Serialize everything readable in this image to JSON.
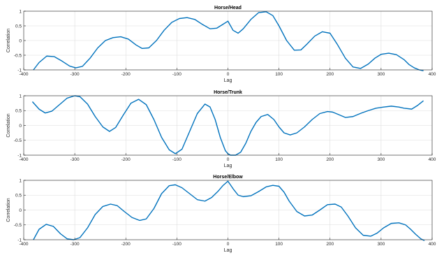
{
  "chart_data": [
    {
      "type": "line",
      "title": "Horse/Head",
      "xlabel": "Lag",
      "ylabel": "Correlation",
      "xlim": [
        -400,
        400
      ],
      "ylim": [
        -1,
        1
      ],
      "xticks": [
        -400,
        -300,
        -200,
        -100,
        0,
        100,
        200,
        300,
        400
      ],
      "yticks": [
        -1,
        -0.5,
        0,
        0.5,
        1
      ],
      "grid": true,
      "series": [
        {
          "color": "#0072bd",
          "x": [
            -381,
            -370,
            -355,
            -340,
            -325,
            -310,
            -298,
            -285,
            -270,
            -255,
            -240,
            -225,
            -210,
            -195,
            -180,
            -168,
            -155,
            -140,
            -125,
            -110,
            -95,
            -80,
            -65,
            -50,
            -35,
            -22,
            -10,
            0,
            10,
            20,
            30,
            45,
            60,
            75,
            88,
            100,
            115,
            130,
            143,
            155,
            170,
            185,
            200,
            215,
            230,
            245,
            260,
            275,
            288,
            300,
            315,
            330,
            345,
            355,
            365,
            375,
            383
          ],
          "y": [
            -1.0,
            -0.75,
            -0.53,
            -0.55,
            -0.7,
            -0.87,
            -0.93,
            -0.88,
            -0.6,
            -0.25,
            0.0,
            0.1,
            0.13,
            0.05,
            -0.15,
            -0.27,
            -0.25,
            0.0,
            0.35,
            0.62,
            0.75,
            0.78,
            0.72,
            0.55,
            0.4,
            0.42,
            0.55,
            0.66,
            0.35,
            0.25,
            0.4,
            0.72,
            0.95,
            0.98,
            0.85,
            0.5,
            0.0,
            -0.33,
            -0.32,
            -0.12,
            0.15,
            0.3,
            0.25,
            -0.15,
            -0.6,
            -0.9,
            -0.95,
            -0.8,
            -0.6,
            -0.47,
            -0.43,
            -0.48,
            -0.65,
            -0.82,
            -0.93,
            -1.0,
            -1.05
          ]
        }
      ]
    },
    {
      "type": "line",
      "title": "Horse/Trunk",
      "xlabel": "Lag",
      "ylabel": "Correlation",
      "xlim": [
        -400,
        400
      ],
      "ylim": [
        -1,
        1
      ],
      "xticks": [
        -400,
        -300,
        -200,
        -100,
        0,
        100,
        200,
        300,
        400
      ],
      "yticks": [
        -1,
        -0.5,
        0,
        0.5,
        1
      ],
      "grid": true,
      "series": [
        {
          "color": "#0072bd",
          "x": [
            -383,
            -370,
            -358,
            -345,
            -330,
            -315,
            -300,
            -290,
            -275,
            -260,
            -245,
            -232,
            -220,
            -205,
            -190,
            -175,
            -160,
            -145,
            -130,
            -115,
            -103,
            -90,
            -75,
            -60,
            -45,
            -35,
            -25,
            -15,
            -5,
            0,
            5,
            15,
            25,
            35,
            45,
            55,
            65,
            78,
            90,
            100,
            110,
            122,
            135,
            150,
            165,
            180,
            195,
            205,
            215,
            230,
            245,
            262,
            275,
            290,
            305,
            320,
            335,
            345,
            360,
            372,
            383
          ],
          "y": [
            0.8,
            0.55,
            0.42,
            0.48,
            0.7,
            0.92,
            1.0,
            0.97,
            0.72,
            0.3,
            -0.05,
            -0.2,
            -0.07,
            0.35,
            0.75,
            0.88,
            0.7,
            0.2,
            -0.4,
            -0.82,
            -0.95,
            -0.8,
            -0.2,
            0.4,
            0.72,
            0.62,
            0.2,
            -0.4,
            -0.85,
            -0.95,
            -1.0,
            -1.0,
            -0.9,
            -0.6,
            -0.2,
            0.1,
            0.3,
            0.37,
            0.2,
            -0.05,
            -0.25,
            -0.32,
            -0.25,
            -0.05,
            0.2,
            0.4,
            0.47,
            0.45,
            0.38,
            0.27,
            0.3,
            0.42,
            0.5,
            0.58,
            0.62,
            0.65,
            0.62,
            0.58,
            0.55,
            0.68,
            0.83
          ]
        }
      ]
    },
    {
      "type": "line",
      "title": "Horse/Elbow",
      "xlabel": "Lag",
      "ylabel": "Correlation",
      "xlim": [
        -400,
        400
      ],
      "ylim": [
        -1,
        1
      ],
      "xticks": [
        -400,
        -300,
        -200,
        -100,
        0,
        100,
        200,
        300,
        400
      ],
      "yticks": [
        -1,
        -0.5,
        0,
        0.5,
        1
      ],
      "grid": true,
      "series": [
        {
          "color": "#0072bd",
          "x": [
            -381,
            -370,
            -356,
            -342,
            -328,
            -315,
            -302,
            -290,
            -275,
            -260,
            -245,
            -230,
            -217,
            -203,
            -188,
            -173,
            -160,
            -145,
            -130,
            -115,
            -103,
            -90,
            -75,
            -60,
            -45,
            -32,
            -20,
            -10,
            0,
            10,
            20,
            30,
            45,
            60,
            75,
            88,
            100,
            110,
            120,
            135,
            150,
            165,
            180,
            195,
            210,
            222,
            235,
            250,
            265,
            280,
            292,
            305,
            320,
            335,
            348,
            358,
            368,
            378,
            385
          ],
          "y": [
            -1.0,
            -0.65,
            -0.48,
            -0.55,
            -0.8,
            -0.97,
            -1.0,
            -0.93,
            -0.6,
            -0.15,
            0.12,
            0.2,
            0.15,
            -0.05,
            -0.25,
            -0.35,
            -0.3,
            0.05,
            0.55,
            0.82,
            0.85,
            0.75,
            0.55,
            0.35,
            0.3,
            0.42,
            0.62,
            0.82,
            0.97,
            0.72,
            0.5,
            0.45,
            0.48,
            0.62,
            0.78,
            0.83,
            0.8,
            0.6,
            0.3,
            -0.05,
            -0.2,
            -0.17,
            0.0,
            0.18,
            0.2,
            0.1,
            -0.2,
            -0.6,
            -0.85,
            -0.88,
            -0.78,
            -0.6,
            -0.45,
            -0.43,
            -0.5,
            -0.65,
            -0.82,
            -0.97,
            -1.05
          ]
        }
      ]
    }
  ]
}
